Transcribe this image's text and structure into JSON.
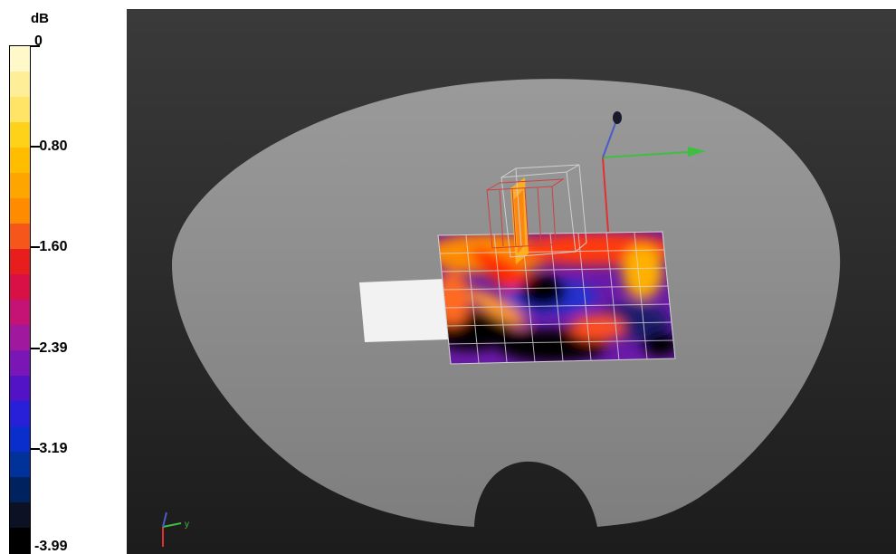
{
  "legend": {
    "unit": "dB",
    "ticks": [
      "0",
      "-0.80",
      "-1.60",
      "-2.39",
      "-3.19",
      "-3.99"
    ],
    "colors": [
      "#fff8c8",
      "#ffee98",
      "#ffe466",
      "#ffd21a",
      "#ffbd00",
      "#ffa500",
      "#ff8c00",
      "#f7561a",
      "#e81e1e",
      "#d91045",
      "#c41275",
      "#a0189e",
      "#7a16b6",
      "#5212c6",
      "#2820d8",
      "#0a2ecc",
      "#00329a",
      "#00235f",
      "#0c1224",
      "#000000"
    ]
  },
  "viewport": {
    "background_top": "#3a3a3a",
    "background_bottom": "#1c1c1c",
    "phantom_color": "#8c8c8c",
    "axis_colors": {
      "x": "#e03030",
      "y": "#3fbf3f",
      "z": "#4a5cc8"
    },
    "corner_axis_label": "y"
  }
}
